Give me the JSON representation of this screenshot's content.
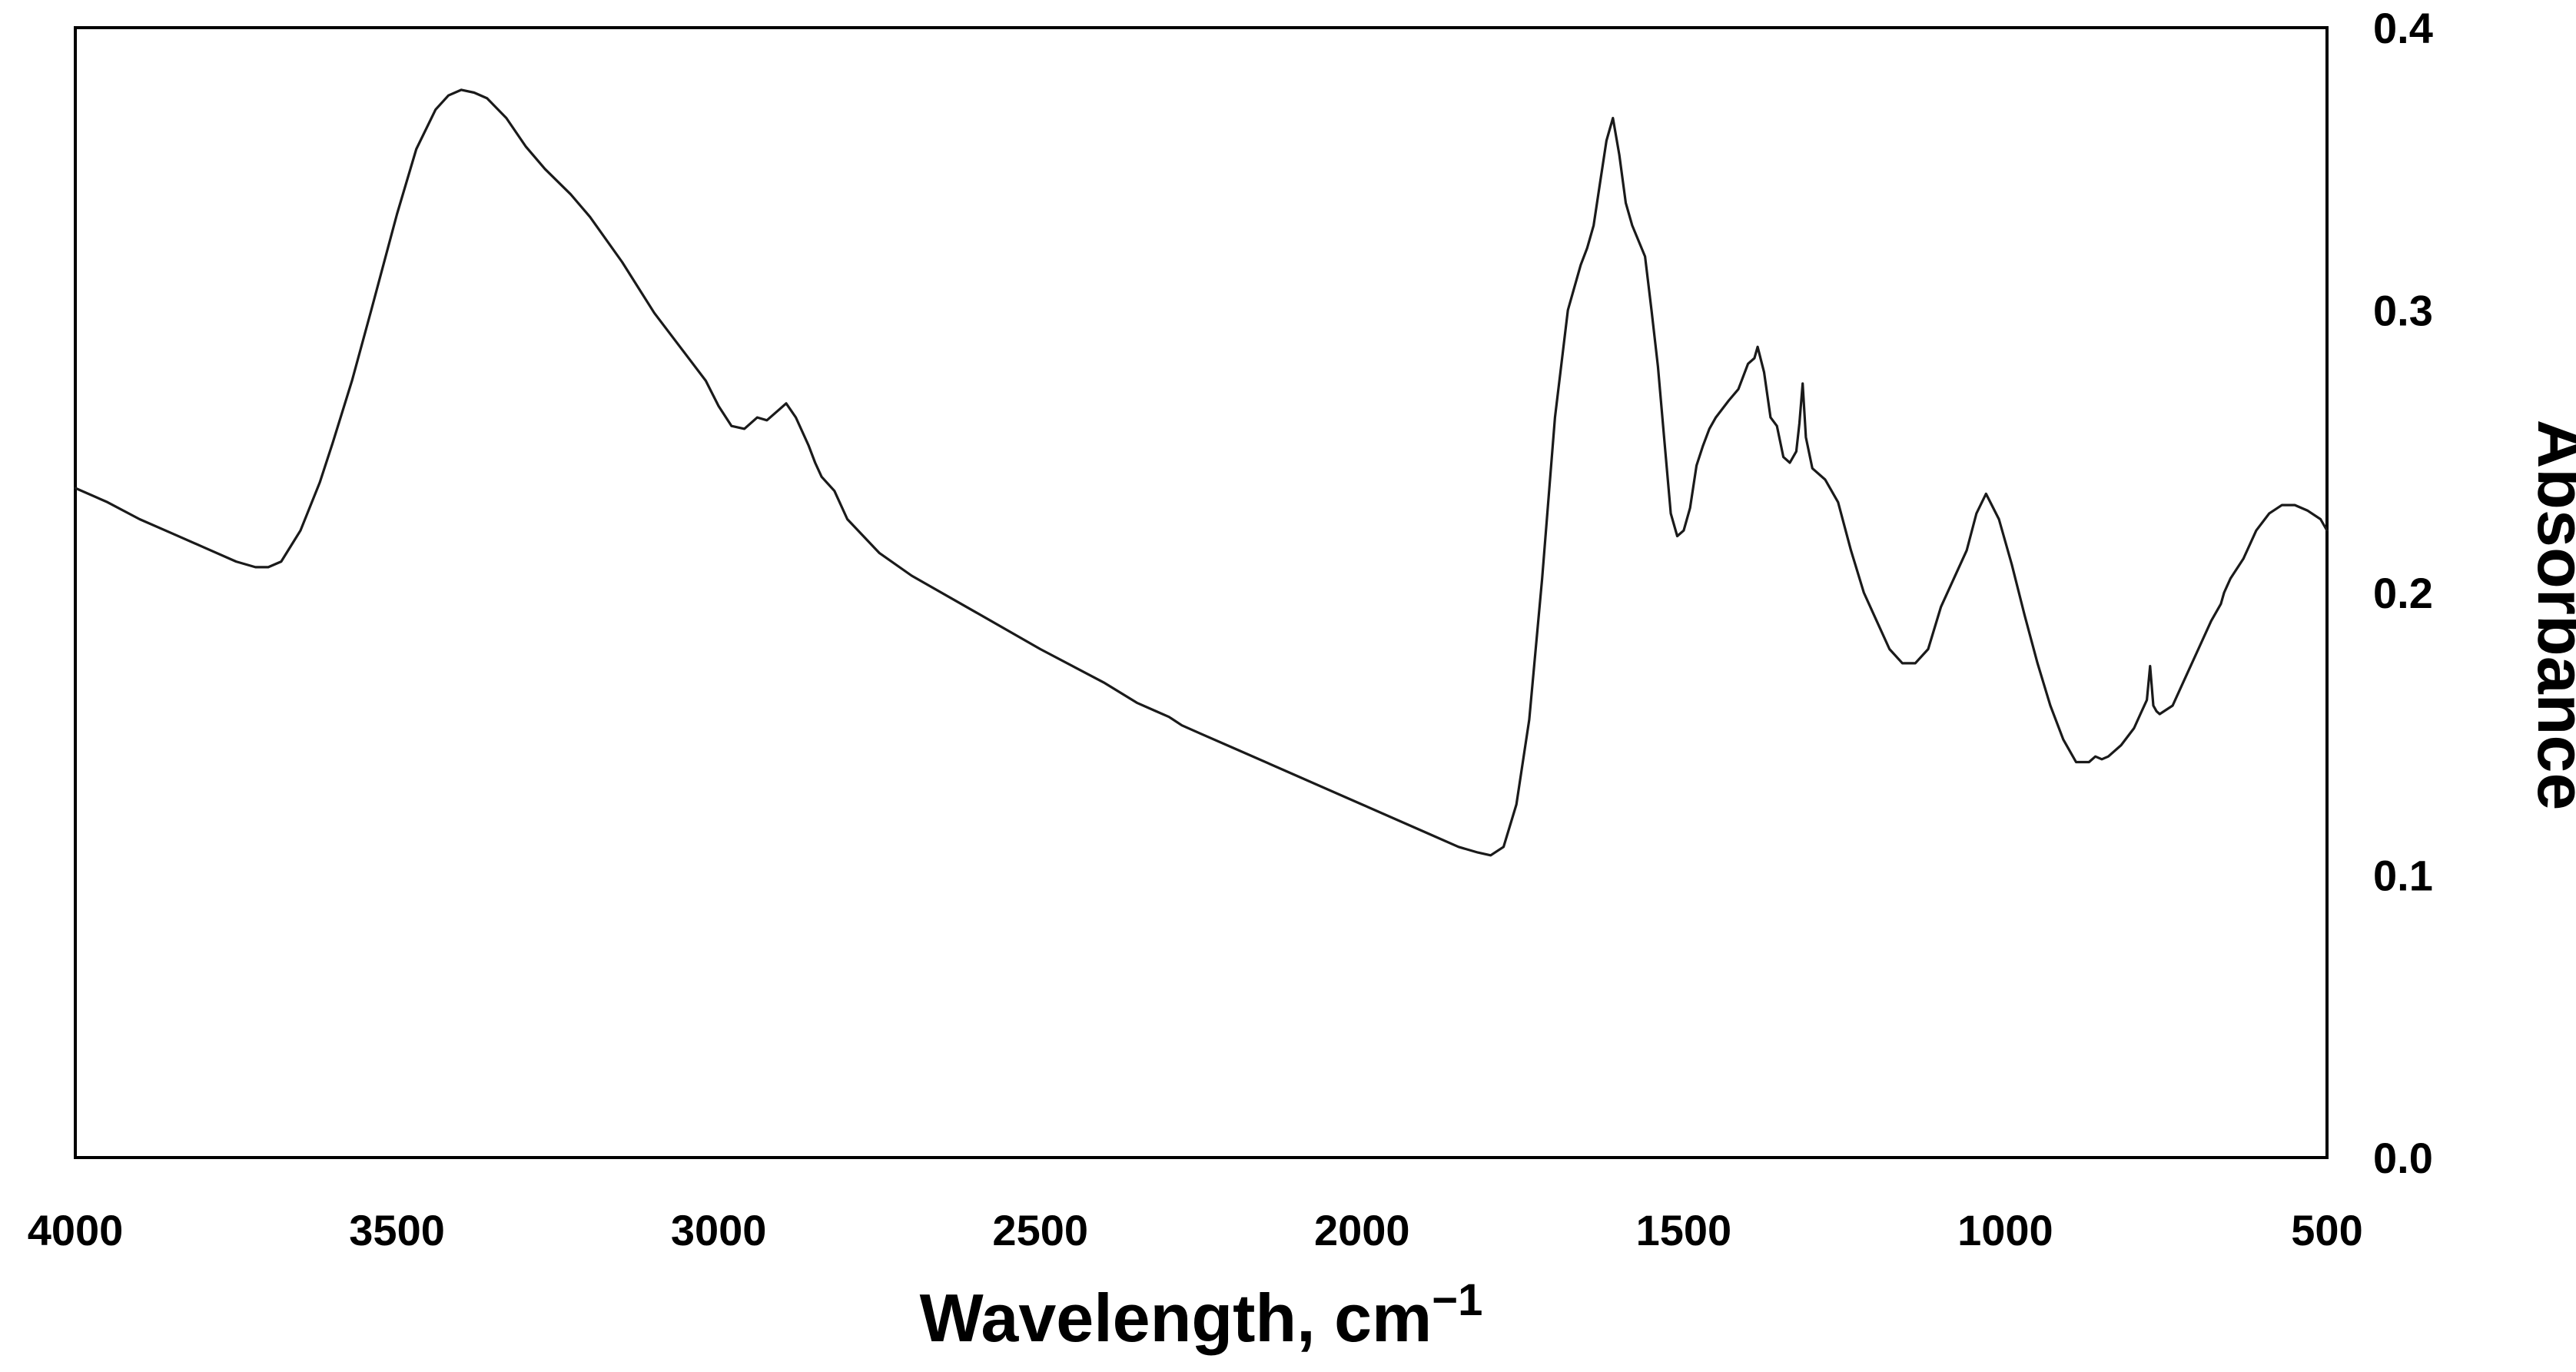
{
  "chart_data": {
    "type": "line",
    "title": "",
    "xlabel": "Wavelength, cm",
    "xlabel_superscript": "−1",
    "ylabel": "Absorbance",
    "xlim": [
      4000,
      500
    ],
    "ylim": [
      0.0,
      0.4
    ],
    "x_reversed": true,
    "y_axis_side": "right",
    "grid": false,
    "legend": "none",
    "line_color": "#1a1a1a",
    "x_ticks": [
      "4000",
      "3500",
      "3000",
      "2500",
      "2000",
      "1500",
      "1000",
      "500"
    ],
    "y_ticks": [
      "0.0",
      "0.1",
      "0.2",
      "0.3",
      "0.4"
    ],
    "series": [
      {
        "x": [
          4000,
          3950,
          3900,
          3850,
          3800,
          3750,
          3720,
          3700,
          3680,
          3650,
          3620,
          3600,
          3570,
          3540,
          3500,
          3470,
          3440,
          3420,
          3400,
          3380,
          3360,
          3330,
          3300,
          3270,
          3230,
          3200,
          3150,
          3100,
          3050,
          3020,
          3000,
          2980,
          2960,
          2940,
          2925,
          2910,
          2895,
          2880,
          2860,
          2850,
          2840,
          2820,
          2800,
          2750,
          2700,
          2600,
          2500,
          2400,
          2350,
          2320,
          2300,
          2280,
          2250,
          2200,
          2100,
          2000,
          1900,
          1850,
          1820,
          1800,
          1780,
          1760,
          1740,
          1720,
          1700,
          1680,
          1660,
          1650,
          1640,
          1630,
          1620,
          1610,
          1600,
          1590,
          1580,
          1560,
          1550,
          1540,
          1530,
          1520,
          1510,
          1500,
          1490,
          1480,
          1470,
          1460,
          1450,
          1430,
          1415,
          1400,
          1390,
          1385,
          1375,
          1365,
          1355,
          1345,
          1335,
          1325,
          1320,
          1315,
          1310,
          1300,
          1280,
          1260,
          1240,
          1220,
          1200,
          1180,
          1160,
          1140,
          1120,
          1100,
          1080,
          1060,
          1045,
          1030,
          1010,
          990,
          970,
          950,
          930,
          910,
          890,
          870,
          860,
          850,
          840,
          820,
          800,
          790,
          780,
          775,
          770,
          765,
          760,
          740,
          720,
          700,
          680,
          665,
          660,
          650,
          630,
          610,
          590,
          570,
          550,
          530,
          510,
          500
        ],
        "y": [
          0.237,
          0.232,
          0.226,
          0.221,
          0.216,
          0.211,
          0.209,
          0.209,
          0.211,
          0.222,
          0.239,
          0.253,
          0.275,
          0.3,
          0.334,
          0.357,
          0.371,
          0.376,
          0.378,
          0.377,
          0.375,
          0.368,
          0.358,
          0.35,
          0.341,
          0.333,
          0.317,
          0.299,
          0.284,
          0.275,
          0.266,
          0.259,
          0.258,
          0.262,
          0.261,
          0.264,
          0.267,
          0.262,
          0.252,
          0.246,
          0.241,
          0.236,
          0.226,
          0.214,
          0.206,
          0.193,
          0.18,
          0.168,
          0.161,
          0.158,
          0.156,
          0.153,
          0.15,
          0.145,
          0.135,
          0.125,
          0.115,
          0.11,
          0.108,
          0.107,
          0.11,
          0.125,
          0.155,
          0.205,
          0.262,
          0.3,
          0.316,
          0.322,
          0.33,
          0.345,
          0.36,
          0.368,
          0.355,
          0.338,
          0.33,
          0.319,
          0.3,
          0.28,
          0.254,
          0.228,
          0.22,
          0.222,
          0.23,
          0.245,
          0.252,
          0.258,
          0.262,
          0.268,
          0.272,
          0.281,
          0.283,
          0.287,
          0.278,
          0.262,
          0.259,
          0.248,
          0.246,
          0.25,
          0.26,
          0.274,
          0.255,
          0.244,
          0.24,
          0.232,
          0.215,
          0.2,
          0.19,
          0.18,
          0.175,
          0.175,
          0.18,
          0.195,
          0.205,
          0.215,
          0.228,
          0.235,
          0.226,
          0.21,
          0.192,
          0.175,
          0.16,
          0.148,
          0.14,
          0.14,
          0.142,
          0.141,
          0.142,
          0.146,
          0.152,
          0.157,
          0.162,
          0.174,
          0.16,
          0.158,
          0.157,
          0.16,
          0.17,
          0.18,
          0.19,
          0.196,
          0.2,
          0.205,
          0.212,
          0.222,
          0.228,
          0.231,
          0.231,
          0.229,
          0.226,
          0.222
        ]
      }
    ]
  }
}
